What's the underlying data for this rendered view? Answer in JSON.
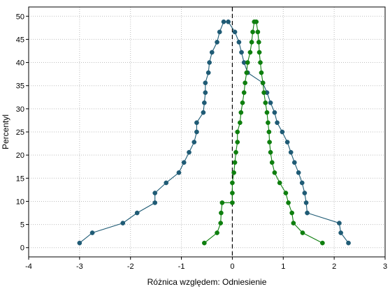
{
  "chart_data": {
    "type": "line",
    "xlabel": "Różnica względem: Odniesienie",
    "ylabel": "Percentyl",
    "xlim": [
      -4,
      3
    ],
    "ylim": [
      -2,
      52
    ],
    "xticks": [
      -4,
      -3,
      -2,
      -1,
      0,
      1,
      2,
      3
    ],
    "yticks": [
      0,
      5,
      10,
      15,
      20,
      25,
      30,
      35,
      40,
      45,
      50
    ],
    "grid": true,
    "reference_line_x": 0,
    "series": [
      {
        "color": "#1f5b75",
        "points": [
          [
            -3.0,
            1.0
          ],
          [
            -2.75,
            3.2
          ],
          [
            -2.15,
            5.3
          ],
          [
            -1.87,
            7.5
          ],
          [
            -1.52,
            9.7
          ],
          [
            -1.52,
            11.8
          ],
          [
            -1.3,
            14.0
          ],
          [
            -1.05,
            16.2
          ],
          [
            -0.95,
            18.4
          ],
          [
            -0.85,
            20.6
          ],
          [
            -0.75,
            22.8
          ],
          [
            -0.7,
            25.0
          ],
          [
            -0.7,
            27.0
          ],
          [
            -0.57,
            29.2
          ],
          [
            -0.55,
            31.3
          ],
          [
            -0.53,
            33.5
          ],
          [
            -0.53,
            35.6
          ],
          [
            -0.47,
            37.8
          ],
          [
            -0.45,
            40.0
          ],
          [
            -0.4,
            42.2
          ],
          [
            -0.3,
            44.4
          ],
          [
            -0.25,
            46.6
          ],
          [
            -0.17,
            48.8
          ],
          [
            -0.08,
            48.8
          ],
          [
            0.05,
            46.6
          ],
          [
            0.13,
            44.4
          ],
          [
            0.18,
            42.2
          ],
          [
            0.23,
            40.0
          ],
          [
            0.3,
            37.8
          ],
          [
            0.6,
            35.6
          ],
          [
            0.68,
            33.5
          ],
          [
            0.75,
            31.3
          ],
          [
            0.83,
            29.2
          ],
          [
            0.88,
            27.0
          ],
          [
            0.98,
            25.0
          ],
          [
            1.08,
            22.8
          ],
          [
            1.15,
            20.6
          ],
          [
            1.22,
            18.4
          ],
          [
            1.3,
            16.2
          ],
          [
            1.37,
            14.0
          ],
          [
            1.42,
            11.8
          ],
          [
            1.45,
            9.7
          ],
          [
            1.47,
            7.5
          ],
          [
            2.1,
            5.3
          ],
          [
            2.13,
            3.2
          ],
          [
            2.28,
            1.0
          ]
        ]
      },
      {
        "color": "#0e7f0e",
        "points": [
          [
            -0.55,
            1.0
          ],
          [
            -0.3,
            3.2
          ],
          [
            -0.23,
            5.3
          ],
          [
            -0.22,
            7.5
          ],
          [
            -0.2,
            9.7
          ],
          [
            0.0,
            9.7
          ],
          [
            0.0,
            11.8
          ],
          [
            0.0,
            14.0
          ],
          [
            0.03,
            16.2
          ],
          [
            0.05,
            18.4
          ],
          [
            0.07,
            20.6
          ],
          [
            0.1,
            22.8
          ],
          [
            0.1,
            25.0
          ],
          [
            0.15,
            27.0
          ],
          [
            0.17,
            29.2
          ],
          [
            0.2,
            31.3
          ],
          [
            0.23,
            33.5
          ],
          [
            0.25,
            35.6
          ],
          [
            0.28,
            37.8
          ],
          [
            0.3,
            40.0
          ],
          [
            0.35,
            42.2
          ],
          [
            0.38,
            44.4
          ],
          [
            0.4,
            46.6
          ],
          [
            0.43,
            48.8
          ],
          [
            0.47,
            48.8
          ],
          [
            0.5,
            46.6
          ],
          [
            0.52,
            44.4
          ],
          [
            0.53,
            42.2
          ],
          [
            0.55,
            40.0
          ],
          [
            0.57,
            37.8
          ],
          [
            0.6,
            35.6
          ],
          [
            0.62,
            33.5
          ],
          [
            0.65,
            31.3
          ],
          [
            0.68,
            29.2
          ],
          [
            0.7,
            27.0
          ],
          [
            0.72,
            25.0
          ],
          [
            0.73,
            22.8
          ],
          [
            0.75,
            20.6
          ],
          [
            0.78,
            18.4
          ],
          [
            0.83,
            16.2
          ],
          [
            0.93,
            14.0
          ],
          [
            1.05,
            11.8
          ],
          [
            1.1,
            9.7
          ],
          [
            1.17,
            7.5
          ],
          [
            1.2,
            5.3
          ],
          [
            1.38,
            3.2
          ],
          [
            1.77,
            1.0
          ]
        ]
      }
    ]
  }
}
